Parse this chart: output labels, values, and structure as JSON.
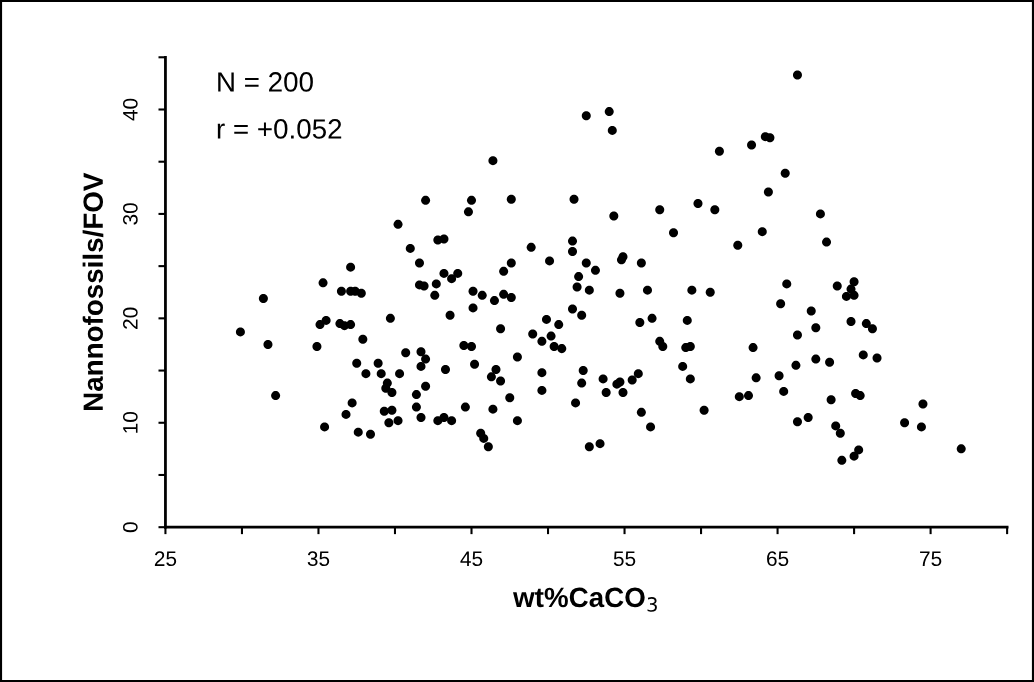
{
  "chart_data": {
    "type": "scatter",
    "xlabel": "wt%CaCO$_{3}$",
    "ylabel": "Nannofossils/FOV",
    "annotations": [
      "N = 200",
      "r = +0.052"
    ],
    "xlim": [
      25,
      80
    ],
    "ylim": [
      0,
      45
    ],
    "xticks": [
      25,
      {
        "value": 30,
        "label": null
      },
      35,
      {
        "value": 40,
        "label": null
      },
      45,
      {
        "value": 50,
        "label": null
      },
      55,
      {
        "value": 60,
        "label": null
      },
      65,
      {
        "value": 70,
        "label": null
      },
      75,
      {
        "value": 80,
        "label": null
      }
    ],
    "yticks": [
      0,
      {
        "value": 5,
        "label": null
      },
      10,
      {
        "value": 15,
        "label": null
      },
      20,
      {
        "value": 25,
        "label": null
      },
      30,
      {
        "value": 35,
        "label": null
      },
      40,
      {
        "value": 45,
        "label": null
      }
    ],
    "grid": false,
    "marker": "circle",
    "series": [
      {
        "color": "#000000",
        "x": [
          37.1,
          35.3,
          37.4,
          31.4,
          35.5,
          35.1,
          29.9,
          31.7,
          34.9,
          37.5,
          32.2,
          37.2,
          36.8,
          35.4,
          37.6,
          37.9,
          46.4,
          42.0,
          45.0,
          47.6,
          44.8,
          40.2,
          42.8,
          43.2,
          41.0,
          48.9,
          41.6,
          50.1,
          47.6,
          47.1,
          43.2,
          43.7,
          44.1,
          36.5,
          37.1,
          37.8,
          41.6,
          41.9,
          42.7,
          42.6,
          45.1,
          45.7,
          46.5,
          47.1,
          47.6,
          45.1,
          43.6,
          39.7,
          36.4,
          36.7,
          37.1,
          46.9,
          49.9,
          50.7,
          49.0,
          49.6,
          50.2,
          50.4,
          50.9,
          44.5,
          45.0,
          40.7,
          41.7,
          42.0,
          48.0,
          38.9,
          38.1,
          39.1,
          40.3,
          41.7,
          43.3,
          45.2,
          46.6,
          46.3,
          46.9,
          49.6,
          49.6,
          39.5,
          39.4,
          39.8,
          42.0,
          41.4,
          41.4,
          41.7,
          39.3,
          39.8,
          39.6,
          40.2,
          42.8,
          43.2,
          43.7,
          44.6,
          46.4,
          47.5,
          48.0,
          38.4,
          45.6,
          45.8,
          46.1,
          52.5,
          54.0,
          54.2,
          61.2,
          63.3,
          64.2,
          64.5,
          64.4,
          51.7,
          54.3,
          57.3,
          59.8,
          60.9,
          58.2,
          64.0,
          62.4,
          51.6,
          51.6,
          52.5,
          53.1,
          52.0,
          51.9,
          52.7,
          54.9,
          54.8,
          56.1,
          54.7,
          56.5,
          59.4,
          60.6,
          51.6,
          52.2,
          56.0,
          56.8,
          59.1,
          57.3,
          57.5,
          59.0,
          59.3,
          63.4,
          65.2,
          65.1,
          52.3,
          52.2,
          53.6,
          54.5,
          54.7,
          53.8,
          54.9,
          55.5,
          55.9,
          58.8,
          59.3,
          63.6,
          51.8,
          56.1,
          56.7,
          60.2,
          62.5,
          63.1,
          52.7,
          53.4,
          66.3,
          65.5,
          67.8,
          68.2,
          65.6,
          68.9,
          70.0,
          69.8,
          69.5,
          70.0,
          67.2,
          67.5,
          69.8,
          70.8,
          71.2,
          66.3,
          70.6,
          71.5,
          67.5,
          68.4,
          66.2,
          65.4,
          68.5,
          70.1,
          70.4,
          74.5,
          73.3,
          74.4,
          66.3,
          67.0,
          68.8,
          69.1,
          70.3,
          70.0,
          69.2,
          77.0
        ],
        "values": [
          24.9,
          23.4,
          22.6,
          21.9,
          19.8,
          19.4,
          18.7,
          17.5,
          17.3,
          15.7,
          12.6,
          11.9,
          10.8,
          9.6,
          9.1,
          18.0,
          35.1,
          31.3,
          31.3,
          31.4,
          30.2,
          29.0,
          27.5,
          27.6,
          26.7,
          26.8,
          25.3,
          25.5,
          25.3,
          24.5,
          24.3,
          23.8,
          24.3,
          22.6,
          22.6,
          22.4,
          23.2,
          23.1,
          23.3,
          22.2,
          22.6,
          22.2,
          21.7,
          22.3,
          22.0,
          21.0,
          20.3,
          20.0,
          19.5,
          19.3,
          19.4,
          19.0,
          19.9,
          19.4,
          18.5,
          17.8,
          18.3,
          17.3,
          17.1,
          17.4,
          17.3,
          16.7,
          16.8,
          16.1,
          16.3,
          15.7,
          14.7,
          14.7,
          14.7,
          15.4,
          15.1,
          15.6,
          15.1,
          14.4,
          14.0,
          14.8,
          13.1,
          13.8,
          13.3,
          12.9,
          13.5,
          12.7,
          11.5,
          10.5,
          11.1,
          11.2,
          10.0,
          10.2,
          10.2,
          10.5,
          10.2,
          11.5,
          11.3,
          12.4,
          10.2,
          8.9,
          9.0,
          8.5,
          7.7,
          39.4,
          39.8,
          38.0,
          36.0,
          36.6,
          37.4,
          37.3,
          32.1,
          31.4,
          29.8,
          30.4,
          31.0,
          30.4,
          28.2,
          28.3,
          27.0,
          27.4,
          26.4,
          25.3,
          24.6,
          24.0,
          23.0,
          22.7,
          25.9,
          25.6,
          25.3,
          22.4,
          22.7,
          22.7,
          22.5,
          20.9,
          20.3,
          19.6,
          20.0,
          19.8,
          17.8,
          17.3,
          17.2,
          17.3,
          17.2,
          21.4,
          14.5,
          15.0,
          13.8,
          14.2,
          13.7,
          13.9,
          12.9,
          12.9,
          14.1,
          14.7,
          15.4,
          14.2,
          14.3,
          11.9,
          11.0,
          9.6,
          11.2,
          12.5,
          12.6,
          7.7,
          8.0,
          43.3,
          33.9,
          30.0,
          27.3,
          23.3,
          23.1,
          23.5,
          22.8,
          22.1,
          22.2,
          20.7,
          19.1,
          19.7,
          19.5,
          19.0,
          18.4,
          16.5,
          16.2,
          16.1,
          15.8,
          15.5,
          13.0,
          12.2,
          12.8,
          12.6,
          11.8,
          10.0,
          9.6,
          10.1,
          10.5,
          9.7,
          9.0,
          7.4,
          6.8,
          6.4,
          7.5
        ]
      }
    ]
  }
}
